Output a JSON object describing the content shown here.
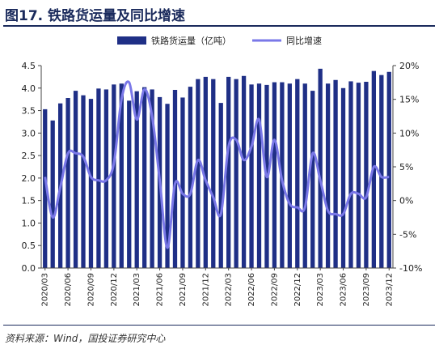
{
  "figure": {
    "title": "图17. 铁路货运量及同比增速",
    "source": "资料来源：Wind，国投证券研究中心"
  },
  "chart_data": {
    "type": "bar+line",
    "categories": [
      "2020/03",
      "2020/04",
      "2020/05",
      "2020/06",
      "2020/07",
      "2020/08",
      "2020/09",
      "2020/10",
      "2020/11",
      "2020/12",
      "2021/01",
      "2021/02",
      "2021/03",
      "2021/04",
      "2021/05",
      "2021/06",
      "2021/07",
      "2021/08",
      "2021/09",
      "2021/10",
      "2021/11",
      "2021/12",
      "2022/01",
      "2022/02",
      "2022/03",
      "2022/04",
      "2022/05",
      "2022/06",
      "2022/07",
      "2022/08",
      "2022/09",
      "2022/10",
      "2022/11",
      "2022/12",
      "2023/01",
      "2023/02",
      "2023/03",
      "2023/04",
      "2023/05",
      "2023/06",
      "2023/07",
      "2023/08",
      "2023/09",
      "2023/10",
      "2023/11",
      "2023/12"
    ],
    "x_tick_labels": [
      "2020/03",
      "2020/06",
      "2020/09",
      "2020/12",
      "2021/03",
      "2021/06",
      "2021/09",
      "2021/12",
      "2022/03",
      "2022/06",
      "2022/09",
      "2022/12",
      "2023/03",
      "2023/06",
      "2023/09",
      "2023/12"
    ],
    "series": [
      {
        "name": "铁路货运量（亿吨）",
        "type": "bar",
        "axis": "left",
        "color": "#1f2f86",
        "values": [
          3.53,
          3.28,
          3.66,
          3.78,
          3.94,
          3.84,
          3.76,
          3.99,
          3.97,
          4.08,
          4.1,
          3.72,
          3.93,
          4.02,
          3.97,
          3.8,
          3.65,
          3.96,
          3.79,
          4.03,
          4.2,
          4.25,
          4.2,
          3.67,
          4.25,
          4.2,
          4.27,
          4.08,
          4.1,
          4.07,
          4.13,
          4.13,
          4.1,
          4.2,
          4.1,
          3.94,
          4.43,
          4.1,
          4.18,
          4.0,
          4.15,
          4.12,
          4.14,
          4.38,
          4.29,
          4.36
        ]
      },
      {
        "name": "同比增速",
        "type": "line",
        "axis": "right",
        "color": "#7a78e8",
        "values": [
          3.5,
          -2.5,
          2.0,
          7.0,
          7.0,
          6.5,
          3.5,
          3.0,
          3.0,
          5.5,
          15.0,
          17.5,
          12.0,
          16.5,
          12.5,
          3.0,
          -7.0,
          2.5,
          1.0,
          1.0,
          6.0,
          3.0,
          0.5,
          -2.0,
          8.0,
          9.0,
          6.0,
          8.0,
          12.0,
          3.5,
          9.0,
          3.0,
          -0.5,
          -1.0,
          -1.0,
          7.0,
          3.0,
          -1.5,
          -2.0,
          -2.0,
          1.0,
          1.0,
          0.5,
          5.0,
          3.5,
          3.5
        ]
      }
    ],
    "left_axis": {
      "min": 0,
      "max": 4.5,
      "ticks": [
        "0.0",
        "0.5",
        "1.0",
        "1.5",
        "2.0",
        "2.5",
        "3.0",
        "3.5",
        "4.0",
        "4.5"
      ]
    },
    "right_axis": {
      "min": -10,
      "max": 20,
      "ticks": [
        "-10%",
        "-5%",
        "0%",
        "5%",
        "10%",
        "15%",
        "20%"
      ]
    },
    "legend": {
      "placement": "top-center",
      "items": [
        {
          "label": "铁路货运量（亿吨）"
        },
        {
          "label": "同比增速"
        }
      ]
    },
    "grid": false
  }
}
